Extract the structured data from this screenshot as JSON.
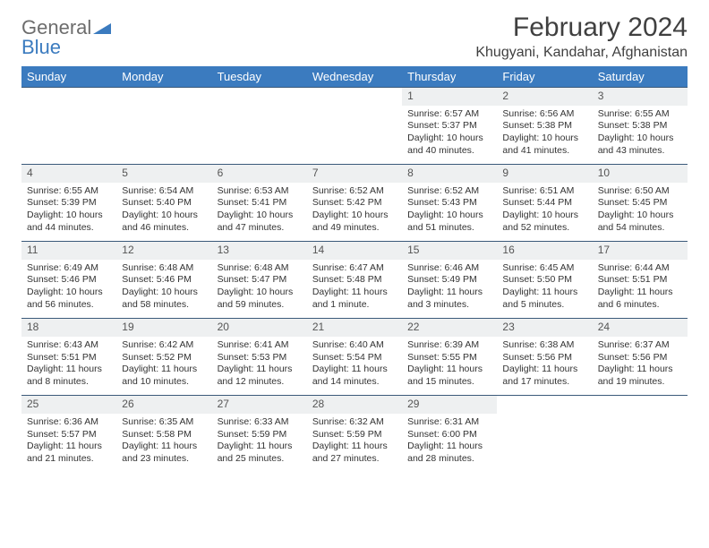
{
  "brand": {
    "text1": "General",
    "text2": "Blue"
  },
  "title": "February 2024",
  "location": "Khugyani, Kandahar, Afghanistan",
  "colors": {
    "header_bg": "#3b7bbf",
    "header_text": "#ffffff",
    "daynum_bg": "#eef0f1",
    "row_border": "#3b5a7a",
    "body_text": "#333333",
    "title_text": "#404040",
    "logo_gray": "#6d6d6d",
    "logo_blue": "#3b7bbf",
    "page_bg": "#ffffff"
  },
  "weekdays": [
    "Sunday",
    "Monday",
    "Tuesday",
    "Wednesday",
    "Thursday",
    "Friday",
    "Saturday"
  ],
  "first_weekday_index": 4,
  "days": [
    {
      "n": 1,
      "sunrise": "6:57 AM",
      "sunset": "5:37 PM",
      "daylight": "10 hours and 40 minutes."
    },
    {
      "n": 2,
      "sunrise": "6:56 AM",
      "sunset": "5:38 PM",
      "daylight": "10 hours and 41 minutes."
    },
    {
      "n": 3,
      "sunrise": "6:55 AM",
      "sunset": "5:38 PM",
      "daylight": "10 hours and 43 minutes."
    },
    {
      "n": 4,
      "sunrise": "6:55 AM",
      "sunset": "5:39 PM",
      "daylight": "10 hours and 44 minutes."
    },
    {
      "n": 5,
      "sunrise": "6:54 AM",
      "sunset": "5:40 PM",
      "daylight": "10 hours and 46 minutes."
    },
    {
      "n": 6,
      "sunrise": "6:53 AM",
      "sunset": "5:41 PM",
      "daylight": "10 hours and 47 minutes."
    },
    {
      "n": 7,
      "sunrise": "6:52 AM",
      "sunset": "5:42 PM",
      "daylight": "10 hours and 49 minutes."
    },
    {
      "n": 8,
      "sunrise": "6:52 AM",
      "sunset": "5:43 PM",
      "daylight": "10 hours and 51 minutes."
    },
    {
      "n": 9,
      "sunrise": "6:51 AM",
      "sunset": "5:44 PM",
      "daylight": "10 hours and 52 minutes."
    },
    {
      "n": 10,
      "sunrise": "6:50 AM",
      "sunset": "5:45 PM",
      "daylight": "10 hours and 54 minutes."
    },
    {
      "n": 11,
      "sunrise": "6:49 AM",
      "sunset": "5:46 PM",
      "daylight": "10 hours and 56 minutes."
    },
    {
      "n": 12,
      "sunrise": "6:48 AM",
      "sunset": "5:46 PM",
      "daylight": "10 hours and 58 minutes."
    },
    {
      "n": 13,
      "sunrise": "6:48 AM",
      "sunset": "5:47 PM",
      "daylight": "10 hours and 59 minutes."
    },
    {
      "n": 14,
      "sunrise": "6:47 AM",
      "sunset": "5:48 PM",
      "daylight": "11 hours and 1 minute."
    },
    {
      "n": 15,
      "sunrise": "6:46 AM",
      "sunset": "5:49 PM",
      "daylight": "11 hours and 3 minutes."
    },
    {
      "n": 16,
      "sunrise": "6:45 AM",
      "sunset": "5:50 PM",
      "daylight": "11 hours and 5 minutes."
    },
    {
      "n": 17,
      "sunrise": "6:44 AM",
      "sunset": "5:51 PM",
      "daylight": "11 hours and 6 minutes."
    },
    {
      "n": 18,
      "sunrise": "6:43 AM",
      "sunset": "5:51 PM",
      "daylight": "11 hours and 8 minutes."
    },
    {
      "n": 19,
      "sunrise": "6:42 AM",
      "sunset": "5:52 PM",
      "daylight": "11 hours and 10 minutes."
    },
    {
      "n": 20,
      "sunrise": "6:41 AM",
      "sunset": "5:53 PM",
      "daylight": "11 hours and 12 minutes."
    },
    {
      "n": 21,
      "sunrise": "6:40 AM",
      "sunset": "5:54 PM",
      "daylight": "11 hours and 14 minutes."
    },
    {
      "n": 22,
      "sunrise": "6:39 AM",
      "sunset": "5:55 PM",
      "daylight": "11 hours and 15 minutes."
    },
    {
      "n": 23,
      "sunrise": "6:38 AM",
      "sunset": "5:56 PM",
      "daylight": "11 hours and 17 minutes."
    },
    {
      "n": 24,
      "sunrise": "6:37 AM",
      "sunset": "5:56 PM",
      "daylight": "11 hours and 19 minutes."
    },
    {
      "n": 25,
      "sunrise": "6:36 AM",
      "sunset": "5:57 PM",
      "daylight": "11 hours and 21 minutes."
    },
    {
      "n": 26,
      "sunrise": "6:35 AM",
      "sunset": "5:58 PM",
      "daylight": "11 hours and 23 minutes."
    },
    {
      "n": 27,
      "sunrise": "6:33 AM",
      "sunset": "5:59 PM",
      "daylight": "11 hours and 25 minutes."
    },
    {
      "n": 28,
      "sunrise": "6:32 AM",
      "sunset": "5:59 PM",
      "daylight": "11 hours and 27 minutes."
    },
    {
      "n": 29,
      "sunrise": "6:31 AM",
      "sunset": "6:00 PM",
      "daylight": "11 hours and 28 minutes."
    }
  ],
  "labels": {
    "sunrise": "Sunrise:",
    "sunset": "Sunset:",
    "daylight": "Daylight:"
  }
}
